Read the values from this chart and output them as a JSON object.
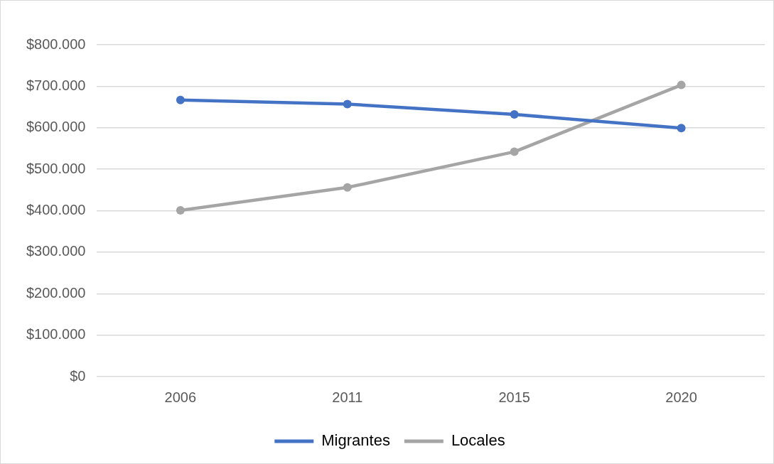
{
  "chart_data": {
    "type": "line",
    "categories": [
      "2006",
      "2011",
      "2015",
      "2020"
    ],
    "series": [
      {
        "name": "Migrantes",
        "color": "#4472c4",
        "values": [
          667000,
          657000,
          632000,
          599000
        ]
      },
      {
        "name": "Locales",
        "color": "#a5a5a5",
        "values": [
          401000,
          456000,
          542000,
          703000
        ]
      }
    ],
    "ylim": [
      0,
      800000
    ],
    "yticks": [
      {
        "value": 0,
        "label": "$0"
      },
      {
        "value": 100000,
        "label": "$100.000"
      },
      {
        "value": 200000,
        "label": "$200.000"
      },
      {
        "value": 300000,
        "label": "$300.000"
      },
      {
        "value": 400000,
        "label": "$400.000"
      },
      {
        "value": 500000,
        "label": "$500.000"
      },
      {
        "value": 600000,
        "label": "$600.000"
      },
      {
        "value": 700000,
        "label": "$700.000"
      },
      {
        "value": 800000,
        "label": "$800.000"
      }
    ],
    "grid": "y",
    "legend": "bottom",
    "marker": "circle",
    "line_style": "solid"
  }
}
